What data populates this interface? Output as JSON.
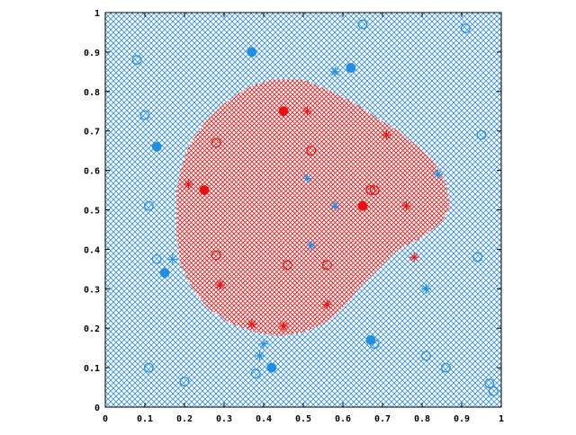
{
  "chart_data": {
    "type": "scatter",
    "title": "",
    "xlabel": "",
    "ylabel": "",
    "xlim": [
      0,
      1
    ],
    "ylim": [
      0,
      1
    ],
    "grid": false,
    "x_ticks": [
      "0",
      "0.1",
      "0.2",
      "0.3",
      "0.4",
      "0.5",
      "0.6",
      "0.7",
      "0.8",
      "0.9",
      "1"
    ],
    "y_ticks": [
      "0",
      "0.1",
      "0.2",
      "0.3",
      "0.4",
      "0.5",
      "0.6",
      "0.7",
      "0.8",
      "0.9",
      "1"
    ],
    "colors": {
      "blue": "#1f8fe6",
      "red": "#ee1010",
      "blue_region": "#3a8fd8",
      "red_region": "#e02020"
    },
    "regions": [
      {
        "class": "red",
        "shape": "blob",
        "boundary": [
          [
            0.18,
            0.55
          ],
          [
            0.19,
            0.6
          ],
          [
            0.21,
            0.66
          ],
          [
            0.25,
            0.72
          ],
          [
            0.3,
            0.77
          ],
          [
            0.36,
            0.81
          ],
          [
            0.42,
            0.83
          ],
          [
            0.5,
            0.83
          ],
          [
            0.57,
            0.8
          ],
          [
            0.63,
            0.77
          ],
          [
            0.69,
            0.73
          ],
          [
            0.74,
            0.7
          ],
          [
            0.79,
            0.66
          ],
          [
            0.83,
            0.62
          ],
          [
            0.86,
            0.57
          ],
          [
            0.87,
            0.51
          ],
          [
            0.85,
            0.47
          ],
          [
            0.8,
            0.43
          ],
          [
            0.74,
            0.4
          ],
          [
            0.7,
            0.36
          ],
          [
            0.64,
            0.3
          ],
          [
            0.59,
            0.24
          ],
          [
            0.55,
            0.21
          ],
          [
            0.5,
            0.19
          ],
          [
            0.44,
            0.18
          ],
          [
            0.38,
            0.19
          ],
          [
            0.32,
            0.21
          ],
          [
            0.26,
            0.25
          ],
          [
            0.22,
            0.3
          ],
          [
            0.19,
            0.36
          ],
          [
            0.18,
            0.44
          ]
        ]
      },
      {
        "class": "blue",
        "shape": "background"
      }
    ],
    "series": [
      {
        "color": "blue",
        "marker": "circle-open",
        "points": [
          [
            0.08,
            0.88
          ],
          [
            0.1,
            0.74
          ],
          [
            0.11,
            0.51
          ],
          [
            0.13,
            0.375
          ],
          [
            0.11,
            0.1
          ],
          [
            0.2,
            0.065
          ],
          [
            0.38,
            0.085
          ],
          [
            0.65,
            0.97
          ],
          [
            0.91,
            0.96
          ],
          [
            0.95,
            0.69
          ],
          [
            0.94,
            0.38
          ],
          [
            0.68,
            0.16
          ],
          [
            0.81,
            0.13
          ],
          [
            0.86,
            0.1
          ],
          [
            0.97,
            0.06
          ],
          [
            0.98,
            0.04
          ]
        ]
      },
      {
        "color": "blue",
        "marker": "circle-filled",
        "points": [
          [
            0.37,
            0.9
          ],
          [
            0.62,
            0.86
          ],
          [
            0.13,
            0.66
          ],
          [
            0.15,
            0.34
          ],
          [
            0.42,
            0.1
          ],
          [
            0.67,
            0.17
          ]
        ]
      },
      {
        "color": "blue",
        "marker": "star",
        "points": [
          [
            0.58,
            0.85
          ],
          [
            0.51,
            0.58
          ],
          [
            0.58,
            0.51
          ],
          [
            0.84,
            0.59
          ],
          [
            0.52,
            0.41
          ],
          [
            0.17,
            0.375
          ],
          [
            0.81,
            0.3
          ],
          [
            0.4,
            0.16
          ],
          [
            0.39,
            0.13
          ]
        ]
      },
      {
        "color": "red",
        "marker": "circle-open",
        "points": [
          [
            0.28,
            0.67
          ],
          [
            0.52,
            0.65
          ],
          [
            0.67,
            0.55
          ],
          [
            0.68,
            0.55
          ],
          [
            0.28,
            0.385
          ],
          [
            0.46,
            0.36
          ],
          [
            0.56,
            0.36
          ]
        ]
      },
      {
        "color": "red",
        "marker": "circle-filled",
        "points": [
          [
            0.45,
            0.75
          ],
          [
            0.25,
            0.55
          ],
          [
            0.65,
            0.51
          ]
        ]
      },
      {
        "color": "red",
        "marker": "star",
        "points": [
          [
            0.51,
            0.75
          ],
          [
            0.71,
            0.69
          ],
          [
            0.21,
            0.565
          ],
          [
            0.76,
            0.51
          ],
          [
            0.78,
            0.38
          ],
          [
            0.29,
            0.31
          ],
          [
            0.56,
            0.26
          ],
          [
            0.37,
            0.21
          ],
          [
            0.45,
            0.205
          ]
        ]
      }
    ]
  }
}
